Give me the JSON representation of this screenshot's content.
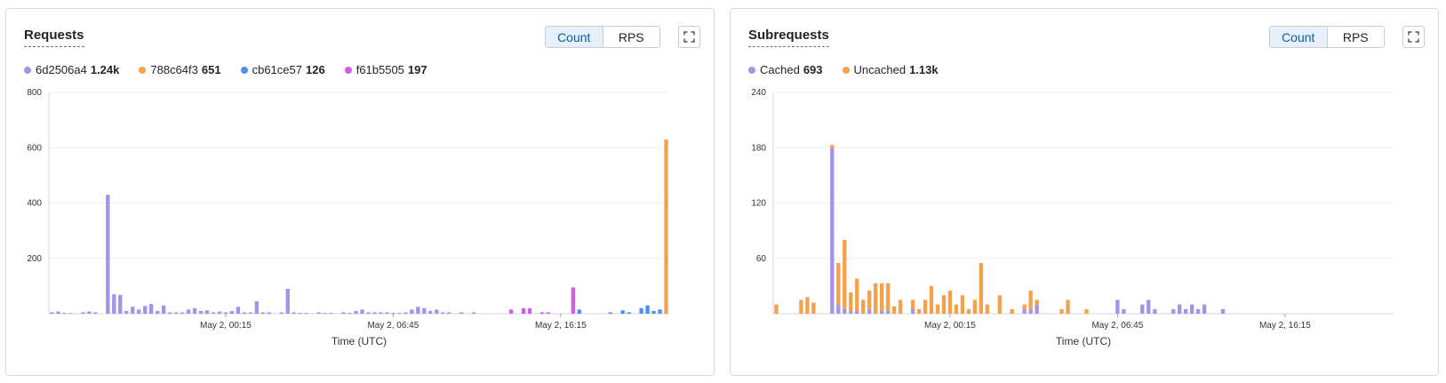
{
  "colors": {
    "purple": "#a394e9",
    "orange": "#f5a04a",
    "blue": "#4a90f0",
    "magenta": "#cf5ee8",
    "active_bg": "#e6f0fb",
    "active_text": "#0b5cad"
  },
  "panels": [
    {
      "title": "Requests",
      "toggle": {
        "options": [
          "Count",
          "RPS"
        ],
        "selected": "Count"
      },
      "expand_icon": "expand-icon",
      "legend": [
        {
          "name": "6d2506a4",
          "value": "1.24k",
          "color": "#a394e9"
        },
        {
          "name": "788c64f3",
          "value": "651",
          "color": "#f5a04a"
        },
        {
          "name": "cb61ce57",
          "value": "126",
          "color": "#4a90f0"
        },
        {
          "name": "f61b5505",
          "value": "197",
          "color": "#cf5ee8"
        }
      ]
    },
    {
      "title": "Subrequests",
      "toggle": {
        "options": [
          "Count",
          "RPS"
        ],
        "selected": "Count"
      },
      "expand_icon": "expand-icon",
      "legend": [
        {
          "name": "Cached",
          "value": "693",
          "color": "#a394e9"
        },
        {
          "name": "Uncached",
          "value": "1.13k",
          "color": "#f5a04a"
        }
      ]
    }
  ],
  "chart_data": [
    {
      "type": "bar",
      "stacked": true,
      "xlabel": "Time (UTC)",
      "ylabel": "",
      "ylim": [
        0,
        800
      ],
      "yticks": [
        200,
        400,
        600,
        800
      ],
      "xticks": [
        {
          "label": "May 2, 00:15",
          "index": 28
        },
        {
          "label": "May 2, 06:45",
          "index": 55
        },
        {
          "label": "May 2, 16:15",
          "index": 82
        }
      ],
      "bar_count": 100,
      "grid": true,
      "legend_position": "top-left",
      "series": [
        {
          "name": "6d2506a4",
          "color": "#a394e9",
          "values": [
            5,
            8,
            3,
            2,
            0,
            5,
            8,
            5,
            0,
            430,
            70,
            68,
            10,
            25,
            15,
            28,
            35,
            10,
            30,
            5,
            5,
            5,
            15,
            20,
            10,
            12,
            5,
            8,
            5,
            10,
            25,
            5,
            5,
            45,
            5,
            5,
            0,
            5,
            90,
            5,
            3,
            3,
            0,
            5,
            3,
            3,
            0,
            5,
            3,
            10,
            15,
            5,
            5,
            5,
            5,
            3,
            3,
            5,
            15,
            25,
            20,
            10,
            15,
            5,
            5,
            0,
            5,
            0,
            5,
            0,
            0,
            0,
            0,
            0,
            0,
            0,
            0,
            0,
            0,
            0,
            0,
            0,
            0,
            0,
            0,
            0,
            0,
            0,
            0,
            0,
            0,
            0,
            0,
            0,
            0,
            0,
            0,
            0,
            0,
            0
          ]
        },
        {
          "name": "788c64f3",
          "color": "#f5a04a",
          "values": [
            0,
            0,
            0,
            0,
            0,
            0,
            0,
            0,
            0,
            0,
            0,
            0,
            0,
            0,
            0,
            0,
            0,
            0,
            0,
            0,
            0,
            0,
            0,
            0,
            0,
            0,
            0,
            0,
            0,
            0,
            0,
            0,
            0,
            0,
            0,
            0,
            0,
            0,
            0,
            0,
            0,
            0,
            0,
            0,
            0,
            0,
            0,
            0,
            0,
            0,
            0,
            0,
            0,
            0,
            0,
            0,
            0,
            0,
            0,
            0,
            0,
            0,
            0,
            0,
            0,
            0,
            0,
            0,
            0,
            0,
            0,
            0,
            0,
            0,
            0,
            0,
            0,
            0,
            0,
            0,
            0,
            0,
            0,
            0,
            0,
            0,
            0,
            0,
            0,
            0,
            0,
            0,
            0,
            0,
            0,
            0,
            0,
            0,
            0,
            630
          ]
        },
        {
          "name": "cb61ce57",
          "color": "#4a90f0",
          "values": [
            0,
            0,
            0,
            0,
            0,
            0,
            0,
            0,
            0,
            0,
            0,
            0,
            0,
            0,
            0,
            0,
            0,
            0,
            0,
            0,
            0,
            0,
            0,
            0,
            0,
            0,
            0,
            0,
            0,
            0,
            0,
            0,
            0,
            0,
            0,
            0,
            0,
            0,
            0,
            0,
            0,
            0,
            0,
            0,
            0,
            0,
            0,
            0,
            0,
            0,
            0,
            0,
            0,
            0,
            0,
            0,
            0,
            0,
            0,
            0,
            0,
            0,
            0,
            0,
            0,
            0,
            0,
            0,
            0,
            0,
            0,
            0,
            0,
            0,
            0,
            0,
            0,
            0,
            0,
            0,
            0,
            0,
            0,
            0,
            0,
            15,
            0,
            0,
            0,
            0,
            5,
            0,
            12,
            5,
            0,
            20,
            30,
            10,
            15,
            0
          ]
        },
        {
          "name": "f61b5505",
          "color": "#cf5ee8",
          "values": [
            0,
            0,
            0,
            0,
            0,
            0,
            0,
            0,
            0,
            0,
            0,
            0,
            0,
            0,
            0,
            0,
            0,
            0,
            0,
            0,
            0,
            0,
            0,
            0,
            0,
            0,
            0,
            0,
            0,
            0,
            0,
            0,
            0,
            0,
            0,
            0,
            0,
            0,
            0,
            0,
            0,
            0,
            0,
            0,
            0,
            0,
            0,
            0,
            0,
            0,
            0,
            0,
            0,
            0,
            0,
            0,
            0,
            0,
            0,
            0,
            0,
            0,
            0,
            0,
            0,
            0,
            0,
            0,
            0,
            0,
            0,
            0,
            0,
            0,
            15,
            0,
            20,
            20,
            0,
            5,
            5,
            0,
            0,
            0,
            95,
            0,
            0,
            0,
            0,
            0,
            0,
            0,
            0,
            0,
            0,
            0,
            0,
            0,
            0,
            0
          ]
        }
      ]
    },
    {
      "type": "bar",
      "stacked": true,
      "xlabel": "Time (UTC)",
      "ylabel": "",
      "ylim": [
        0,
        240
      ],
      "yticks": [
        60,
        120,
        180,
        240
      ],
      "xticks": [
        {
          "label": "May 2, 00:15",
          "index": 28
        },
        {
          "label": "May 2, 06:45",
          "index": 55
        },
        {
          "label": "May 2, 16:15",
          "index": 82
        }
      ],
      "bar_count": 100,
      "grid": true,
      "legend_position": "top-left",
      "series": [
        {
          "name": "Cached",
          "color": "#a394e9",
          "values": [
            0,
            0,
            0,
            0,
            0,
            0,
            0,
            0,
            0,
            180,
            10,
            5,
            3,
            3,
            0,
            5,
            0,
            3,
            3,
            0,
            0,
            0,
            5,
            0,
            0,
            0,
            0,
            0,
            0,
            0,
            0,
            0,
            0,
            0,
            0,
            0,
            0,
            0,
            0,
            0,
            5,
            5,
            10,
            0,
            0,
            0,
            0,
            0,
            0,
            0,
            0,
            0,
            0,
            0,
            0,
            15,
            5,
            0,
            0,
            10,
            15,
            5,
            0,
            0,
            5,
            10,
            5,
            10,
            5,
            10,
            0,
            0,
            5,
            0,
            0,
            0,
            0,
            0,
            0,
            0,
            0,
            0,
            0,
            0,
            0,
            0,
            0,
            0,
            0,
            0,
            0,
            0,
            0,
            0,
            0,
            0,
            0,
            0,
            0,
            0
          ]
        },
        {
          "name": "Uncached",
          "color": "#f5a04a",
          "values": [
            10,
            0,
            0,
            0,
            15,
            18,
            12,
            0,
            0,
            3,
            45,
            75,
            20,
            35,
            15,
            20,
            33,
            30,
            30,
            8,
            15,
            0,
            10,
            5,
            15,
            30,
            10,
            20,
            25,
            10,
            20,
            5,
            15,
            55,
            10,
            0,
            20,
            0,
            5,
            0,
            5,
            20,
            5,
            0,
            0,
            0,
            5,
            15,
            0,
            0,
            5,
            0,
            0,
            0,
            0,
            0,
            0,
            0,
            0,
            0,
            0,
            0,
            0,
            0,
            0,
            0,
            0,
            0,
            0,
            0,
            0,
            0,
            0,
            0,
            0,
            0,
            0,
            0,
            0,
            0,
            0,
            0,
            0,
            0,
            0,
            0,
            0,
            0,
            0,
            0,
            0,
            0,
            0,
            0,
            0,
            0,
            0,
            0,
            0,
            0
          ]
        }
      ]
    }
  ]
}
